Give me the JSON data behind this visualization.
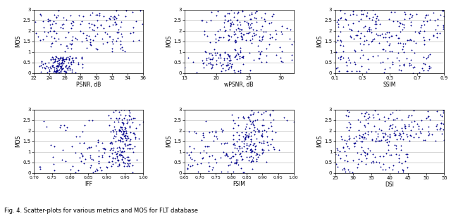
{
  "title": "Fig. 4. Scatter-plots for various metrics and MOS for FLT database",
  "plots": [
    {
      "xlabel": "PSNR, dB",
      "ylabel": "MOS",
      "xlim": [
        22,
        36
      ],
      "ylim": [
        0,
        3
      ],
      "xticks": [
        22,
        24,
        26,
        28,
        30,
        32,
        34,
        36
      ],
      "yticks": [
        0,
        0.5,
        1,
        1.5,
        2,
        2.5,
        3
      ]
    },
    {
      "xlabel": "wPSNR, dB",
      "ylabel": "MOS",
      "xlim": [
        15,
        32
      ],
      "ylim": [
        0,
        3
      ],
      "xticks": [
        15,
        20,
        25,
        30
      ],
      "yticks": [
        0,
        0.5,
        1,
        1.5,
        2,
        2.5,
        3
      ]
    },
    {
      "xlabel": "SSIM",
      "ylabel": "MOS",
      "xlim": [
        0.1,
        0.9
      ],
      "ylim": [
        0,
        3
      ],
      "xticks": [
        0.1,
        0.3,
        0.5,
        0.7,
        0.9
      ],
      "yticks": [
        0,
        0.5,
        1,
        1.5,
        2,
        2.5,
        3
      ]
    },
    {
      "xlabel": "IFF",
      "ylabel": "MOS",
      "xlim": [
        0.7,
        1.0
      ],
      "ylim": [
        0,
        3
      ],
      "xticks": [
        0.7,
        0.75,
        0.8,
        0.85,
        0.9,
        0.95,
        1.0
      ],
      "yticks": [
        0,
        0.5,
        1,
        1.5,
        2,
        2.5,
        3
      ]
    },
    {
      "xlabel": "FSIM",
      "ylabel": "MOS",
      "xlim": [
        0.65,
        1.0
      ],
      "ylim": [
        0,
        3
      ],
      "xticks": [
        0.65,
        0.7,
        0.75,
        0.8,
        0.85,
        0.9,
        0.95,
        1.0
      ],
      "yticks": [
        0,
        0.5,
        1,
        1.5,
        2,
        2.5,
        3
      ]
    },
    {
      "xlabel": "DSI",
      "ylabel": "MOS",
      "xlim": [
        25,
        55
      ],
      "ylim": [
        0,
        3
      ],
      "xticks": [
        25,
        30,
        35,
        40,
        45,
        50,
        55
      ],
      "yticks": [
        0,
        0.5,
        1,
        1.5,
        2,
        2.5,
        3
      ]
    }
  ],
  "dot_color": "#00008B",
  "dot_size": 3,
  "marker": "+"
}
